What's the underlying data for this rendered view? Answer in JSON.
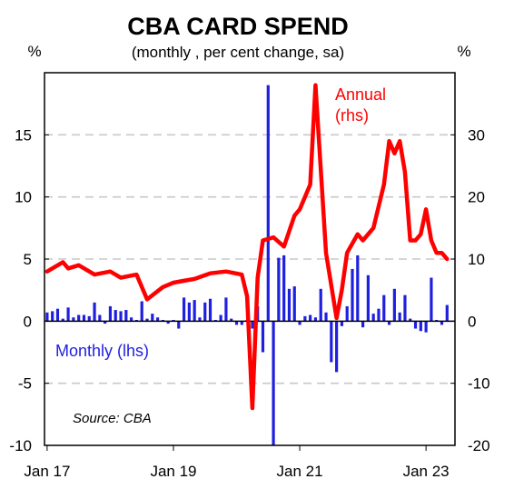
{
  "chart_data": {
    "type": "bar+line",
    "title": "CBA CARD SPEND",
    "subtitle": "(monthly , per cent change, sa)",
    "left_axis": {
      "unit": "%",
      "ylim": [
        -10,
        20
      ],
      "ticks": [
        -10,
        -5,
        0,
        5,
        10,
        15
      ]
    },
    "right_axis": {
      "unit": "%",
      "ylim": [
        -20,
        40
      ],
      "ticks": [
        -20,
        -10,
        0,
        10,
        20,
        30
      ]
    },
    "x_ticks": [
      "Jan 17",
      "Jan 19",
      "Jan 21",
      "Jan 23"
    ],
    "x_range": [
      "2017-01",
      "2023-06"
    ],
    "grid": "horizontal dashed",
    "colors": {
      "monthly": "#1f1fe0",
      "annual": "#ff0000"
    },
    "annotations": {
      "annual_label_line1": "Annual",
      "annual_label_line2": "(rhs)",
      "monthly_label": "Monthly (lhs)",
      "source": "Source: CBA"
    },
    "series": [
      {
        "name": "Monthly (lhs)",
        "axis": "left",
        "type": "bar",
        "x": [
          "2017-01",
          "2017-02",
          "2017-03",
          "2017-04",
          "2017-05",
          "2017-06",
          "2017-07",
          "2017-08",
          "2017-09",
          "2017-10",
          "2017-11",
          "2017-12",
          "2018-01",
          "2018-02",
          "2018-03",
          "2018-04",
          "2018-05",
          "2018-06",
          "2018-07",
          "2018-08",
          "2018-09",
          "2018-10",
          "2018-11",
          "2018-12",
          "2019-01",
          "2019-02",
          "2019-03",
          "2019-04",
          "2019-05",
          "2019-06",
          "2019-07",
          "2019-08",
          "2019-09",
          "2019-10",
          "2019-11",
          "2019-12",
          "2020-01",
          "2020-02",
          "2020-03",
          "2020-04",
          "2020-05",
          "2020-06",
          "2020-07",
          "2020-08",
          "2020-09",
          "2020-10",
          "2020-11",
          "2020-12",
          "2021-01",
          "2021-02",
          "2021-03",
          "2021-04",
          "2021-05",
          "2021-06",
          "2021-07",
          "2021-08",
          "2021-09",
          "2021-10",
          "2021-11",
          "2021-12",
          "2022-01",
          "2022-02",
          "2022-03",
          "2022-04",
          "2022-05",
          "2022-06",
          "2022-07",
          "2022-08",
          "2022-09",
          "2022-10",
          "2022-11",
          "2022-12",
          "2023-01",
          "2023-02",
          "2023-03",
          "2023-04",
          "2023-05"
        ],
        "values": [
          0.7,
          0.8,
          1.0,
          0.2,
          1.1,
          0.3,
          0.5,
          0.5,
          0.4,
          1.5,
          0.5,
          -0.2,
          1.2,
          0.9,
          0.8,
          0.9,
          0.3,
          0.1,
          1.6,
          0.2,
          0.6,
          0.3,
          0.1,
          -0.2,
          0.1,
          -0.6,
          1.9,
          1.5,
          1.7,
          0.3,
          1.5,
          1.8,
          0.1,
          0.5,
          1.9,
          0.2,
          -0.3,
          -0.3,
          0.1,
          -0.6,
          1.2,
          -2.5,
          19.0,
          -10.0,
          5.1,
          5.3,
          2.6,
          2.8,
          -0.3,
          0.4,
          0.5,
          0.3,
          2.6,
          0.7,
          -3.3,
          -4.1,
          -0.4,
          1.2,
          4.2,
          5.3,
          -0.5,
          3.7,
          0.6,
          1.0,
          2.1,
          -0.3,
          2.6,
          0.7,
          2.1,
          0.2,
          -0.6,
          -0.8,
          -0.9,
          3.5,
          0.1,
          -0.3,
          1.3
        ]
      },
      {
        "name": "Annual (rhs)",
        "axis": "right",
        "type": "line",
        "x": [
          "2017-01",
          "2017-04",
          "2017-05",
          "2017-07",
          "2017-10",
          "2018-01",
          "2018-03",
          "2018-06",
          "2018-08",
          "2018-11",
          "2019-01",
          "2019-03",
          "2019-05",
          "2019-08",
          "2019-11",
          "2020-02",
          "2020-03",
          "2020-04",
          "2020-05",
          "2020-06",
          "2020-08",
          "2020-10",
          "2020-12",
          "2021-01",
          "2021-03",
          "2021-04",
          "2021-06",
          "2021-08",
          "2021-09",
          "2021-10",
          "2021-12",
          "2022-01",
          "2022-03",
          "2022-05",
          "2022-06",
          "2022-07",
          "2022-08",
          "2022-09",
          "2022-10",
          "2022-11",
          "2022-12",
          "2023-01",
          "2023-02",
          "2023-03",
          "2023-04",
          "2023-05"
        ],
        "values": [
          8,
          9.5,
          8.5,
          9,
          7.5,
          8,
          7,
          7.5,
          3.5,
          5.5,
          6.2,
          6.5,
          6.8,
          7.7,
          8,
          7.5,
          4,
          -14,
          7,
          13,
          13.5,
          12,
          17,
          18,
          22,
          38,
          11,
          0.5,
          5,
          11,
          14,
          13,
          15,
          22,
          29,
          27,
          29,
          24,
          13,
          13,
          14,
          18,
          13,
          11,
          11,
          10
        ]
      }
    ]
  }
}
